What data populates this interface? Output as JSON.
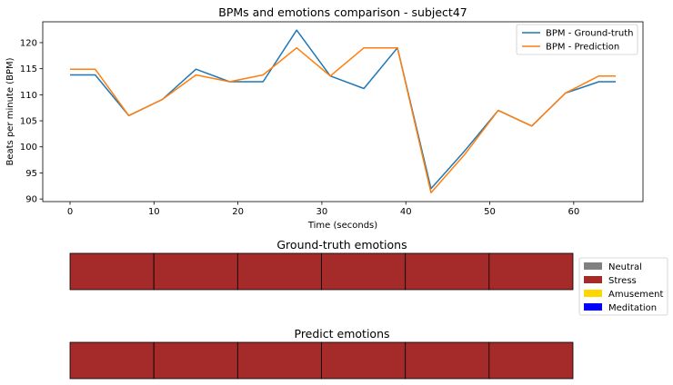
{
  "chart_data": [
    {
      "type": "line",
      "title": "BPMs and emotions comparison - subject47",
      "xlabel": "Time (seconds)",
      "ylabel": "Beats per minute (BPM)",
      "xlim": [
        -3.25,
        68.25
      ],
      "ylim": [
        89.5,
        124.0
      ],
      "xticks": [
        0,
        10,
        20,
        30,
        40,
        50,
        60
      ],
      "yticks": [
        90,
        95,
        100,
        105,
        110,
        115,
        120
      ],
      "grid": false,
      "legend": "top-right",
      "series": [
        {
          "name": "BPM - Ground-truth",
          "color": "#1f77b4",
          "x": [
            0,
            3,
            7,
            11,
            15,
            19,
            23,
            27,
            31,
            35,
            39,
            43,
            47,
            51,
            55,
            59,
            63,
            65
          ],
          "y": [
            113.8,
            113.8,
            106.0,
            109.1,
            114.9,
            112.5,
            112.5,
            122.4,
            113.6,
            111.2,
            119.0,
            92.0,
            99.2,
            107.0,
            104.0,
            110.3,
            112.5,
            112.5
          ]
        },
        {
          "name": "BPM - Prediction",
          "color": "#ff7f0e",
          "x": [
            0,
            3,
            7,
            11,
            15,
            19,
            23,
            27,
            31,
            35,
            39,
            43,
            47,
            51,
            55,
            59,
            63,
            65
          ],
          "y": [
            114.9,
            114.9,
            106.0,
            109.1,
            113.8,
            112.5,
            113.8,
            119.0,
            113.6,
            119.0,
            119.0,
            91.2,
            98.5,
            107.0,
            104.0,
            110.3,
            113.6,
            113.6
          ]
        }
      ]
    },
    {
      "type": "bar",
      "title": "Ground-truth emotions",
      "segments": [
        "Stress",
        "Stress",
        "Stress",
        "Stress",
        "Stress",
        "Stress"
      ]
    },
    {
      "type": "bar",
      "title": "Predict emotions",
      "segments": [
        "Stress",
        "Stress",
        "Stress",
        "Stress",
        "Stress",
        "Stress"
      ]
    }
  ],
  "emotion_legend": [
    {
      "label": "Neutral",
      "color": "#808080"
    },
    {
      "label": "Stress",
      "color": "#a52a2a"
    },
    {
      "label": "Amusement",
      "color": "#ffd700"
    },
    {
      "label": "Meditation",
      "color": "#0000ff"
    }
  ]
}
